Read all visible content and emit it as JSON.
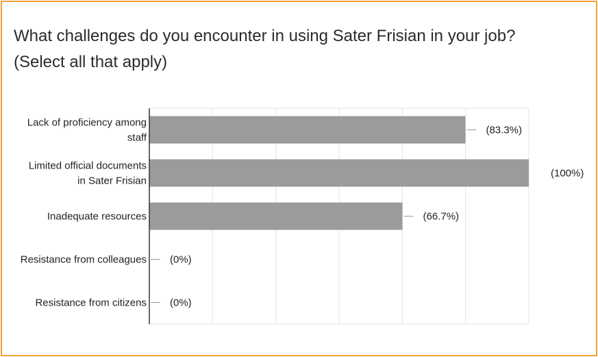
{
  "title": {
    "line1": "What challenges do you encounter in using Sater Frisian in your job?",
    "line2": "(Select all that apply)"
  },
  "colors": {
    "frame": "#f0a23a",
    "bar": "#9b9b9b",
    "grid": "#e3e3e3",
    "axis": "#333333"
  },
  "chart_data": {
    "type": "bar",
    "orientation": "horizontal",
    "title": "What challenges do you encounter in using Sater Frisian in your job? (Select all that apply)",
    "categories": [
      [
        "Lack of proficiency among",
        "staff"
      ],
      [
        "Limited official documents",
        "in Sater Frisian"
      ],
      [
        "Inadequate resources"
      ],
      [
        "Resistance from colleagues"
      ],
      [
        "Resistance from citizens"
      ]
    ],
    "values": [
      83.3,
      100,
      66.7,
      0,
      0
    ],
    "value_labels": [
      "(83.3%)",
      "(100%)",
      "(66.7%)",
      "(0%)",
      "(0%)"
    ],
    "xlim": [
      0,
      100
    ],
    "grid": true,
    "xlabel": "",
    "ylabel": ""
  }
}
